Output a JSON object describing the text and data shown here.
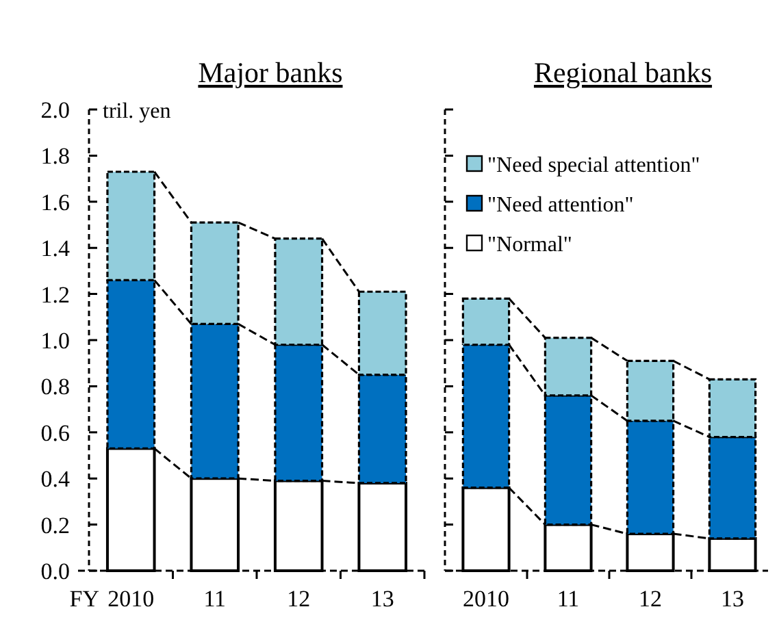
{
  "chart_data": [
    {
      "type": "bar",
      "title": "Major banks",
      "ylabel": "tril. yen",
      "xlabel": "FY",
      "categories": [
        "2010",
        "11",
        "12",
        "13"
      ],
      "stacked": true,
      "ylim": [
        0,
        2.0
      ],
      "yticks": [
        {
          "value": 0,
          "label": "0.0"
        },
        {
          "value": 0.2,
          "label": "0.2"
        },
        {
          "value": 0.4,
          "label": "0.4"
        },
        {
          "value": 0.6,
          "label": "0.6"
        },
        {
          "value": 0.8,
          "label": "0.8"
        },
        {
          "value": 1.0,
          "label": "1.0"
        },
        {
          "value": 1.2,
          "label": "1.2"
        },
        {
          "value": 1.4,
          "label": "1.4"
        },
        {
          "value": 1.6,
          "label": "1.6"
        },
        {
          "value": 1.8,
          "label": "1.8"
        },
        {
          "value": 2.0,
          "label": "2.0"
        }
      ],
      "series": [
        {
          "color": "#ffffff",
          "values": [
            0.53,
            0.4,
            0.39,
            0.38
          ]
        },
        {
          "color": "#0070c0",
          "values": [
            0.73,
            0.67,
            0.59,
            0.47
          ]
        },
        {
          "color": "#92cddc",
          "values": [
            0.47,
            0.44,
            0.46,
            0.36
          ]
        }
      ],
      "legend": false
    },
    {
      "type": "bar",
      "title": "Regional banks",
      "categories": [
        "2010",
        "11",
        "12",
        "13"
      ],
      "stacked": true,
      "ylim": [
        0,
        2.0
      ],
      "yticks": [
        {
          "value": 0,
          "label": null
        },
        {
          "value": 0.2,
          "label": null
        },
        {
          "value": 0.4,
          "label": null
        },
        {
          "value": 0.6,
          "label": null
        },
        {
          "value": 0.8,
          "label": null
        },
        {
          "value": 1.0,
          "label": null
        },
        {
          "value": 1.2,
          "label": null
        },
        {
          "value": 1.4,
          "label": null
        },
        {
          "value": 1.6,
          "label": null
        },
        {
          "value": 1.8,
          "label": null
        },
        {
          "value": 2.0,
          "label": null
        }
      ],
      "tick_labels": "x",
      "series": [
        {
          "name": "\"Normal\"",
          "color": "#ffffff",
          "values": [
            0.36,
            0.2,
            0.16,
            0.14
          ]
        },
        {
          "name": "\"Need attention\"",
          "color": "#0070c0",
          "values": [
            0.62,
            0.56,
            0.49,
            0.44
          ]
        },
        {
          "name": "\"Need special attention\"",
          "color": "#92cddc",
          "values": [
            0.2,
            0.25,
            0.26,
            0.25
          ]
        }
      ],
      "legend": "top"
    }
  ]
}
